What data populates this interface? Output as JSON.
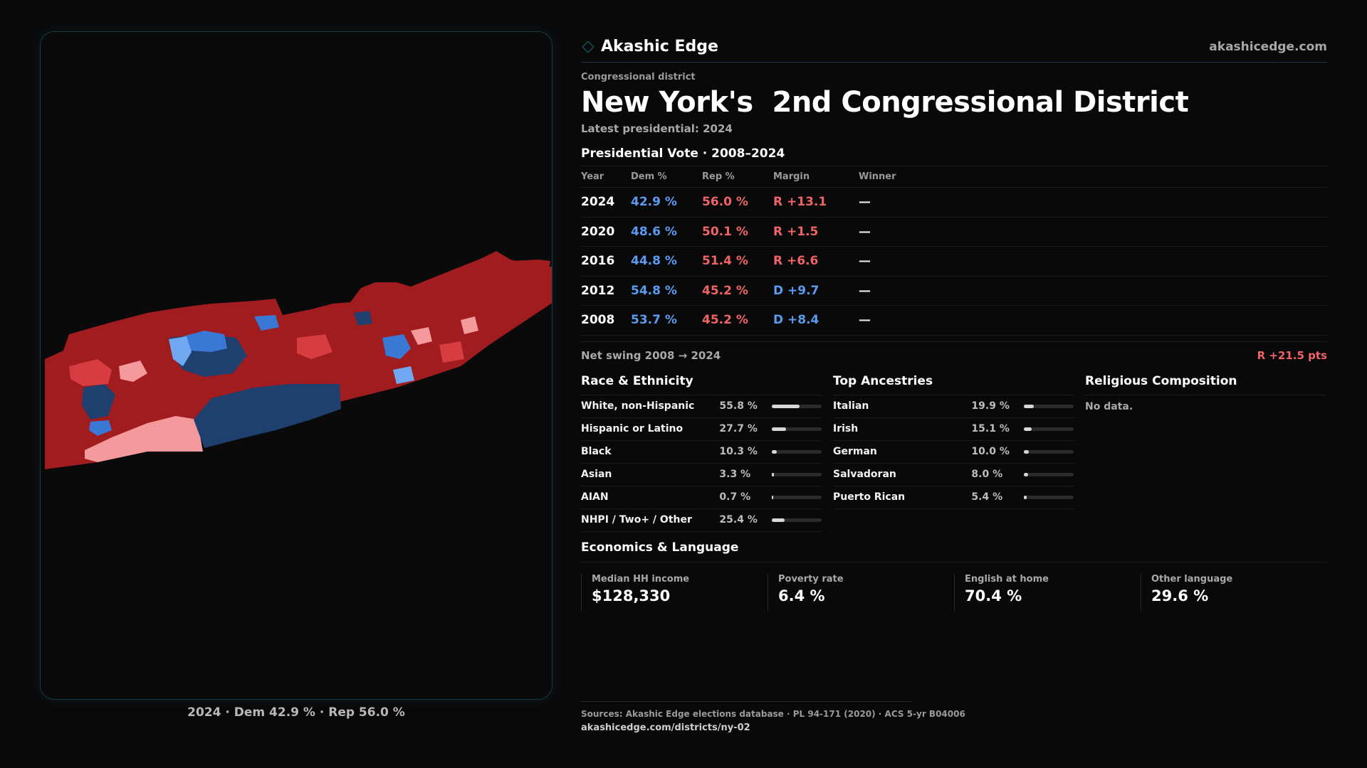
{
  "brand": {
    "name": "Akashic Edge",
    "url": "akashicedge.com"
  },
  "header": {
    "eyebrow": "Congressional district",
    "title": "New York's  2nd Congressional District",
    "subtitle": "Latest presidential: 2024"
  },
  "vote": {
    "heading": "Presidential Vote · 2008–2024",
    "columns": {
      "year": "Year",
      "dem": "Dem %",
      "rep": "Rep %",
      "margin": "Margin",
      "winner": "Winner"
    },
    "rows": [
      {
        "year": "2024",
        "dem": "42.9 %",
        "rep": "56.0 %",
        "margin": "R +13.1",
        "party": "R",
        "winner": "—"
      },
      {
        "year": "2020",
        "dem": "48.6 %",
        "rep": "50.1 %",
        "margin": "R +1.5",
        "party": "R",
        "winner": "—"
      },
      {
        "year": "2016",
        "dem": "44.8 %",
        "rep": "51.4 %",
        "margin": "R +6.6",
        "party": "R",
        "winner": "—"
      },
      {
        "year": "2012",
        "dem": "54.8 %",
        "rep": "45.2 %",
        "margin": "D +9.7",
        "party": "D",
        "winner": "—"
      },
      {
        "year": "2008",
        "dem": "53.7 %",
        "rep": "45.2 %",
        "margin": "D +8.4",
        "party": "D",
        "winner": "—"
      }
    ],
    "swing_label": "Net swing 2008 → 2024",
    "swing_value": "R +21.5 pts"
  },
  "race": {
    "title": "Race & Ethnicity",
    "rows": [
      {
        "label": "White, non-Hispanic",
        "value": "55.8 %",
        "share": 0.558
      },
      {
        "label": "Hispanic or Latino",
        "value": "27.7 %",
        "share": 0.277
      },
      {
        "label": "Black",
        "value": "10.3 %",
        "share": 0.103
      },
      {
        "label": "Asian",
        "value": "3.3 %",
        "share": 0.033
      },
      {
        "label": "AIAN",
        "value": "0.7 %",
        "share": 0.007
      },
      {
        "label": "NHPI / Two+ / Other",
        "value": "25.4 %",
        "share": 0.254
      }
    ]
  },
  "ancestry": {
    "title": "Top Ancestries",
    "rows": [
      {
        "label": "Italian",
        "value": "19.9 %",
        "share": 0.199
      },
      {
        "label": "Irish",
        "value": "15.1 %",
        "share": 0.151
      },
      {
        "label": "German",
        "value": "10.0 %",
        "share": 0.1
      },
      {
        "label": "Salvadoran",
        "value": "8.0 %",
        "share": 0.08
      },
      {
        "label": "Puerto Rican",
        "value": "5.4 %",
        "share": 0.054
      }
    ]
  },
  "religion": {
    "title": "Religious Composition",
    "empty": "No data."
  },
  "econ": {
    "title": "Economics & Language",
    "cards": [
      {
        "label": "Median HH income",
        "value": "$128,330"
      },
      {
        "label": "Poverty rate",
        "value": "6.4 %"
      },
      {
        "label": "English at home",
        "value": "70.4 %"
      },
      {
        "label": "Other language",
        "value": "29.6 %"
      }
    ]
  },
  "map": {
    "caption": "2024 · Dem 42.9 % · Rep 56.0 %"
  },
  "footer": {
    "sources": "Sources: Akashic Edge elections database · PL 94-171 (2020) · ACS 5-yr B04006",
    "url": "akashicedge.com/districts/ny-02"
  },
  "colors": {
    "rep_dark": "#a01c1f",
    "rep_mid": "#d63c40",
    "rep_light": "#f49a9c",
    "dem_dark": "#1f3f6e",
    "dem_mid": "#3a78d6",
    "dem_light": "#6fa8f0"
  }
}
